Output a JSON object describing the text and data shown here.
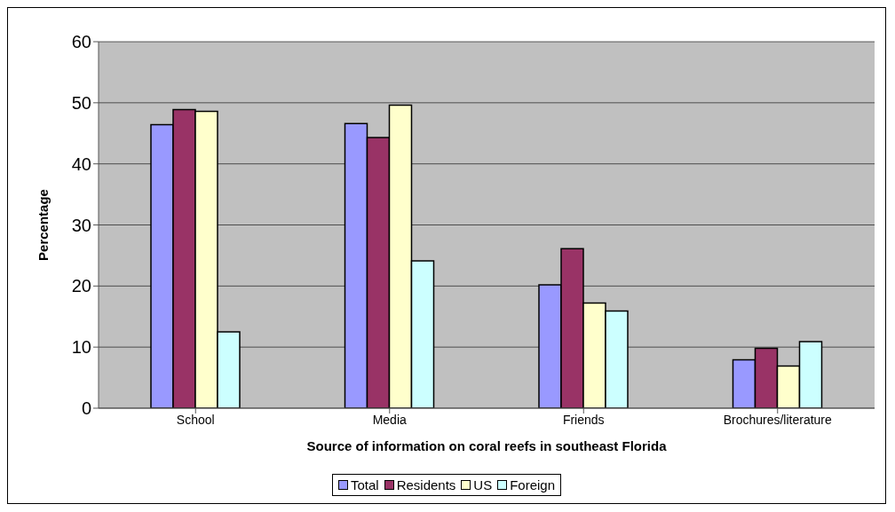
{
  "chart_data": {
    "type": "bar",
    "xlabel": "Source of information on coral reefs in southeast Florida",
    "ylabel": "Percentage",
    "categories": [
      "School",
      "Media",
      "Friends",
      "Brochures/literature"
    ],
    "series": [
      {
        "name": "Total",
        "color": "#9999ff",
        "values": [
          46.4,
          46.6,
          20.2,
          7.9
        ]
      },
      {
        "name": "Residents",
        "color": "#993366",
        "values": [
          48.9,
          44.3,
          26.1,
          9.8
        ]
      },
      {
        "name": "US",
        "color": "#ffffcc",
        "values": [
          48.6,
          49.6,
          17.2,
          6.9
        ]
      },
      {
        "name": "Foreign",
        "color": "#ccffff",
        "values": [
          12.5,
          24.1,
          15.9,
          10.9
        ]
      }
    ],
    "ylim": [
      0,
      60
    ],
    "yticks": [
      0,
      10,
      20,
      30,
      40,
      50,
      60
    ],
    "grid": "y",
    "legend": "bottom"
  }
}
